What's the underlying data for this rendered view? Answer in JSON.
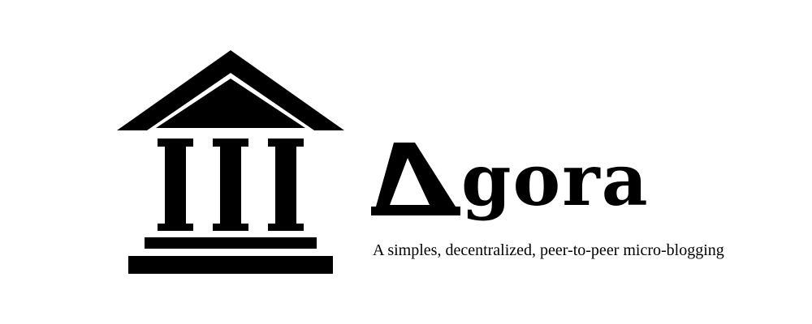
{
  "brand": {
    "name_rest": "gora",
    "tagline": "A simples, decentralized, peer-to-peer micro-blogging"
  },
  "colors": {
    "ink": "#000000",
    "background": "#ffffff"
  },
  "icons": {
    "logo": "greek-temple-icon",
    "initial": "triangle-a-icon"
  }
}
